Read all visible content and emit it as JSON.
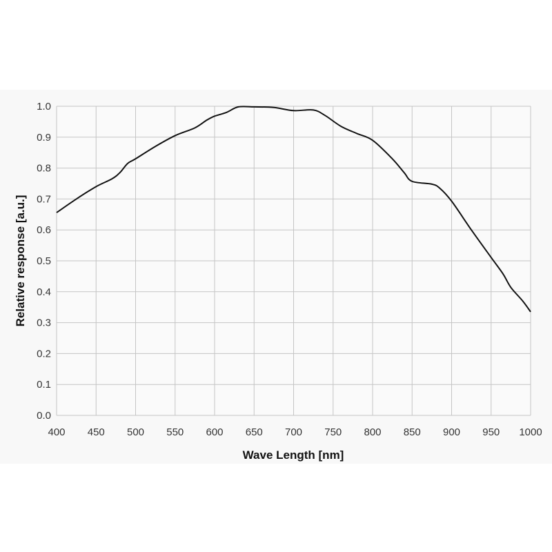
{
  "chart_data": {
    "type": "line",
    "title": "",
    "xlabel": "Wave Length [nm]",
    "ylabel": "Relative response [a.u.]",
    "xlim": [
      400,
      1000
    ],
    "ylim": [
      0.0,
      1.0
    ],
    "xticks": [
      "400",
      "450",
      "500",
      "550",
      "600",
      "650",
      "700",
      "750",
      "800",
      "850",
      "900",
      "950",
      "1000"
    ],
    "yticks": [
      "0.0",
      "0.1",
      "0.2",
      "0.3",
      "0.4",
      "0.5",
      "0.6",
      "0.7",
      "0.8",
      "0.9",
      "1.0"
    ],
    "grid": true,
    "line_color": "#111111",
    "series": [
      {
        "x": [
          400,
          425,
          450,
          470,
          480,
          490,
          500,
          525,
          550,
          575,
          590,
          600,
          615,
          630,
          650,
          675,
          700,
          725,
          740,
          760,
          780,
          800,
          825,
          840,
          850,
          875,
          885,
          900,
          925,
          950,
          965,
          975,
          990,
          1000
        ],
        "y": [
          0.656,
          0.7,
          0.74,
          0.765,
          0.785,
          0.815,
          0.83,
          0.87,
          0.905,
          0.93,
          0.955,
          0.968,
          0.98,
          0.998,
          0.998,
          0.996,
          0.986,
          0.988,
          0.97,
          0.935,
          0.912,
          0.89,
          0.83,
          0.785,
          0.757,
          0.748,
          0.735,
          0.693,
          0.6,
          0.511,
          0.458,
          0.414,
          0.37,
          0.335
        ]
      }
    ]
  }
}
